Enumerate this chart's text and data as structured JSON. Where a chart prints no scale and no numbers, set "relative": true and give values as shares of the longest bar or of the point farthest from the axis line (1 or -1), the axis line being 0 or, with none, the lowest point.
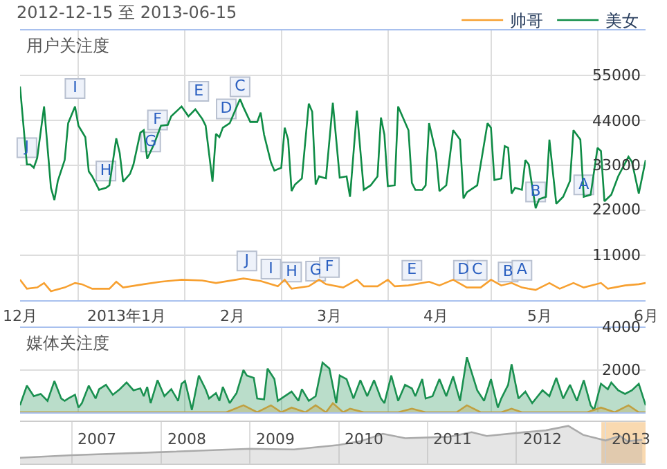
{
  "chart_data": [
    {
      "type": "line",
      "title": "2012-12-15 至 2013-06-15",
      "subtitle": "用户关注度",
      "legend": "top right",
      "grid": true,
      "xlim": [
        "2012-12-15",
        "2013-06-15"
      ],
      "xticks": [
        {
          "value": "2012-12-15",
          "label": "12月"
        },
        {
          "value": "2013-01-15",
          "label": "2013年1月"
        },
        {
          "value": "2013-02-15",
          "label": "2月"
        },
        {
          "value": "2013-03-15",
          "label": "3月"
        },
        {
          "value": "2013-04-15",
          "label": "4月"
        },
        {
          "value": "2013-05-15",
          "label": "5月"
        },
        {
          "value": "2013-06-15",
          "label": "6月"
        }
      ],
      "ylim": [
        0,
        66000
      ],
      "yticks": [
        11000,
        22000,
        33000,
        44000,
        55000
      ],
      "series": [
        {
          "name": "帅哥",
          "color": "#f7a030",
          "x": [
            "2012-12-15",
            "2012-12-17",
            "2012-12-20",
            "2012-12-22",
            "2012-12-24",
            "2012-12-28",
            "2012-12-31",
            "2013-01-02",
            "2013-01-05",
            "2013-01-10",
            "2013-01-12",
            "2013-01-14",
            "2013-01-20",
            "2013-01-25",
            "2013-01-31",
            "2013-02-06",
            "2013-02-10",
            "2013-02-18",
            "2013-02-23",
            "2013-02-28",
            "2013-03-02",
            "2013-03-04",
            "2013-03-09",
            "2013-03-12",
            "2013-03-14",
            "2013-03-19",
            "2013-03-23",
            "2013-03-25",
            "2013-03-29",
            "2013-04-01",
            "2013-04-03",
            "2013-04-07",
            "2013-04-13",
            "2013-04-16",
            "2013-04-20",
            "2013-04-24",
            "2013-04-28",
            "2013-05-01",
            "2013-05-04",
            "2013-05-07",
            "2013-05-10",
            "2013-05-14",
            "2013-05-18",
            "2013-05-21",
            "2013-05-25",
            "2013-05-28",
            "2013-06-02",
            "2013-06-04",
            "2013-06-09",
            "2013-06-13",
            "2013-06-15"
          ],
          "values": [
            5000,
            2800,
            3100,
            4200,
            2200,
            3100,
            4200,
            3900,
            2800,
            2800,
            4500,
            3100,
            3900,
            4500,
            5000,
            4800,
            4200,
            5300,
            4700,
            3400,
            5000,
            2800,
            3400,
            5000,
            3900,
            3100,
            5000,
            3400,
            3400,
            5000,
            3400,
            3600,
            4500,
            3600,
            5000,
            3100,
            3100,
            5000,
            3600,
            4200,
            3100,
            2500,
            4200,
            2800,
            4200,
            3100,
            4200,
            2800,
            3600,
            3900,
            4200
          ]
        },
        {
          "name": "美女",
          "color": "#0f8c46",
          "x": [
            "2012-12-15",
            "2012-12-17",
            "2012-12-18",
            "2012-12-19",
            "2012-12-20",
            "2012-12-22",
            "2012-12-24",
            "2012-12-25",
            "2012-12-26",
            "2012-12-28",
            "2012-12-29",
            "2012-12-31",
            "2013-01-01",
            "2013-01-03",
            "2013-01-04",
            "2013-01-05",
            "2013-01-07",
            "2013-01-09",
            "2013-01-10",
            "2013-01-12",
            "2013-01-13",
            "2013-01-14",
            "2013-01-16",
            "2013-01-17",
            "2013-01-19",
            "2013-01-20",
            "2013-01-21",
            "2013-01-23",
            "2013-01-25",
            "2013-01-27",
            "2013-01-28",
            "2013-01-31",
            "2013-02-02",
            "2013-02-04",
            "2013-02-06",
            "2013-02-07",
            "2013-02-09",
            "2013-02-10",
            "2013-02-11",
            "2013-02-12",
            "2013-02-14",
            "2013-02-17",
            "2013-02-18",
            "2013-02-20",
            "2013-02-22",
            "2013-02-23",
            "2013-02-24",
            "2013-02-26",
            "2013-02-27",
            "2013-03-01",
            "2013-03-02",
            "2013-03-03",
            "2013-03-04",
            "2013-03-05",
            "2013-03-07",
            "2013-03-09",
            "2013-03-10",
            "2013-03-11",
            "2013-03-12",
            "2013-03-14",
            "2013-03-16",
            "2013-03-18",
            "2013-03-20",
            "2013-03-21",
            "2013-03-23",
            "2013-03-25",
            "2013-03-27",
            "2013-03-29",
            "2013-03-30",
            "2013-03-31",
            "2013-04-01",
            "2013-04-03",
            "2013-04-04",
            "2013-04-07",
            "2013-04-08",
            "2013-04-09",
            "2013-04-11",
            "2013-04-12",
            "2013-04-13",
            "2013-04-15",
            "2013-04-16",
            "2013-04-18",
            "2013-04-20",
            "2013-04-22",
            "2013-04-23",
            "2013-04-24",
            "2013-04-27",
            "2013-04-30",
            "2013-05-01",
            "2013-05-02",
            "2013-05-04",
            "2013-05-05",
            "2013-05-06",
            "2013-05-07",
            "2013-05-08",
            "2013-05-10",
            "2013-05-11",
            "2013-05-12",
            "2013-05-14",
            "2013-05-15",
            "2013-05-17",
            "2013-05-18",
            "2013-05-20",
            "2013-05-22",
            "2013-05-24",
            "2013-05-25",
            "2013-05-27",
            "2013-05-28",
            "2013-05-30",
            "2013-06-01",
            "2013-06-02",
            "2013-06-03",
            "2013-06-05",
            "2013-06-07",
            "2013-06-10",
            "2013-06-11",
            "2013-06-13",
            "2013-06-15"
          ],
          "values": [
            52300,
            33200,
            33200,
            32400,
            34800,
            47400,
            27500,
            24500,
            29200,
            34300,
            43300,
            47400,
            42700,
            39900,
            31500,
            30300,
            27000,
            27500,
            28100,
            39600,
            36000,
            29000,
            30900,
            33200,
            41000,
            41600,
            34600,
            38200,
            42700,
            42900,
            45000,
            47400,
            45000,
            46700,
            44400,
            42700,
            29000,
            40700,
            39900,
            42200,
            43300,
            49200,
            47200,
            43600,
            43600,
            45900,
            40500,
            33700,
            31700,
            32400,
            42200,
            39300,
            26700,
            28300,
            29800,
            48100,
            46100,
            28300,
            30300,
            29800,
            48300,
            30000,
            30300,
            25300,
            46400,
            27000,
            28100,
            30300,
            44700,
            40500,
            27900,
            28100,
            47400,
            41600,
            28700,
            27000,
            27000,
            28100,
            43300,
            36000,
            26700,
            28100,
            41600,
            39300,
            24900,
            26400,
            28100,
            43300,
            42200,
            29400,
            29800,
            37700,
            37300,
            26100,
            27500,
            27000,
            34300,
            33200,
            22500,
            24700,
            25300,
            39300,
            23600,
            25300,
            29200,
            41600,
            39300,
            25300,
            25800,
            37300,
            36500,
            24200,
            25800,
            30300,
            35100,
            33900,
            26100,
            34300
          ]
        }
      ],
      "annotations": [
        {
          "text": "J",
          "x": "2012-12-17",
          "y": 37300
        },
        {
          "text": "I",
          "x": "2012-12-31",
          "y": 51800
        },
        {
          "text": "H",
          "x": "2013-01-09",
          "y": 31600
        },
        {
          "text": "G",
          "x": "2013-01-22",
          "y": 38700
        },
        {
          "text": "F",
          "x": "2013-01-24",
          "y": 44100
        },
        {
          "text": "E",
          "x": "2013-02-05",
          "y": 51100
        },
        {
          "text": "D",
          "x": "2013-02-13",
          "y": 46800
        },
        {
          "text": "C",
          "x": "2013-02-17",
          "y": 52200
        },
        {
          "text": "B",
          "x": "2013-05-14",
          "y": 26500
        },
        {
          "text": "A",
          "x": "2013-05-28",
          "y": 28200
        },
        {
          "text": "J",
          "x": "2013-02-19",
          "y": 9600
        },
        {
          "text": "I",
          "x": "2013-02-26",
          "y": 7600
        },
        {
          "text": "H",
          "x": "2013-03-04",
          "y": 6900
        },
        {
          "text": "G",
          "x": "2013-03-11",
          "y": 7100
        },
        {
          "text": "F",
          "x": "2013-03-15",
          "y": 8000
        },
        {
          "text": "E",
          "x": "2013-04-08",
          "y": 7300
        },
        {
          "text": "D",
          "x": "2013-04-23",
          "y": 7300
        },
        {
          "text": "C",
          "x": "2013-04-27",
          "y": 7300
        },
        {
          "text": "B",
          "x": "2013-05-06",
          "y": 6900
        },
        {
          "text": "A",
          "x": "2013-05-10",
          "y": 7300
        }
      ]
    },
    {
      "type": "area",
      "title": "媒体关注度",
      "grid": true,
      "tick_labels": "y",
      "xlim": [
        "2012-12-15",
        "2013-06-15"
      ],
      "ylim": [
        0,
        4000
      ],
      "yticks": [
        2000,
        4000
      ],
      "series": [
        {
          "color": "#1a9050",
          "x": [
            "2012-12-15",
            "2012-12-17",
            "2012-12-19",
            "2012-12-21",
            "2012-12-23",
            "2012-12-25",
            "2012-12-27",
            "2012-12-28",
            "2012-12-29",
            "2012-12-31",
            "2013-01-01",
            "2013-01-02",
            "2013-01-04",
            "2013-01-06",
            "2013-01-07",
            "2013-01-09",
            "2013-01-11",
            "2013-01-13",
            "2013-01-15",
            "2013-01-17",
            "2013-01-19",
            "2013-01-20",
            "2013-01-21",
            "2013-01-22",
            "2013-01-24",
            "2013-01-26",
            "2013-01-28",
            "2013-01-30",
            "2013-01-31",
            "2013-02-01",
            "2013-02-03",
            "2013-02-05",
            "2013-02-07",
            "2013-02-08",
            "2013-02-10",
            "2013-02-11",
            "2013-02-12",
            "2013-02-14",
            "2013-02-16",
            "2013-02-18",
            "2013-02-19",
            "2013-02-21",
            "2013-02-22",
            "2013-02-24",
            "2013-02-25",
            "2013-02-27",
            "2013-02-28",
            "2013-03-01",
            "2013-03-04",
            "2013-03-06",
            "2013-03-07",
            "2013-03-09",
            "2013-03-11",
            "2013-03-13",
            "2013-03-15",
            "2013-03-17",
            "2013-03-18",
            "2013-03-20",
            "2013-03-22",
            "2013-03-24",
            "2013-03-26",
            "2013-03-28",
            "2013-03-30",
            "2013-03-31",
            "2013-04-02",
            "2013-04-04",
            "2013-04-06",
            "2013-04-08",
            "2013-04-09",
            "2013-04-11",
            "2013-04-12",
            "2013-04-14",
            "2013-04-16",
            "2013-04-18",
            "2013-04-20",
            "2013-04-22",
            "2013-04-24",
            "2013-04-27",
            "2013-04-29",
            "2013-05-01",
            "2013-05-03",
            "2013-05-04",
            "2013-05-06",
            "2013-05-07",
            "2013-05-09",
            "2013-05-11",
            "2013-05-13",
            "2013-05-16",
            "2013-05-18",
            "2013-05-20",
            "2013-05-22",
            "2013-05-24",
            "2013-05-26",
            "2013-05-28",
            "2013-05-30",
            "2013-05-31",
            "2013-06-02",
            "2013-06-04",
            "2013-06-05",
            "2013-06-07",
            "2013-06-09",
            "2013-06-11",
            "2013-06-13",
            "2013-06-15"
          ],
          "values": [
            330,
            1260,
            760,
            870,
            540,
            1480,
            650,
            540,
            650,
            830,
            220,
            430,
            1260,
            650,
            1090,
            1300,
            830,
            1090,
            1410,
            1040,
            1130,
            760,
            1200,
            430,
            1520,
            760,
            1090,
            540,
            1350,
            1480,
            110,
            1740,
            1090,
            650,
            910,
            540,
            1200,
            430,
            910,
            2000,
            1740,
            1630,
            650,
            610,
            2070,
            1570,
            540,
            650,
            980,
            540,
            1090,
            540,
            760,
            2350,
            2070,
            430,
            1740,
            1570,
            650,
            1520,
            760,
            1520,
            650,
            430,
            1740,
            540,
            1300,
            1130,
            760,
            1570,
            650,
            760,
            1570,
            760,
            1700,
            540,
            2610,
            1040,
            540,
            1570,
            220,
            650,
            1300,
            2280,
            650,
            980,
            430,
            1040,
            760,
            1630,
            650,
            1300,
            540,
            1520,
            330,
            110,
            1350,
            1090,
            1410,
            1040,
            870,
            1040,
            1350,
            330
          ]
        },
        {
          "color": "#c0a040",
          "x": [
            "2012-12-15",
            "2013-02-13",
            "2013-02-18",
            "2013-02-22",
            "2013-02-26",
            "2013-03-01",
            "2013-03-04",
            "2013-03-08",
            "2013-03-11",
            "2013-03-14",
            "2013-03-16",
            "2013-03-19",
            "2013-03-21",
            "2013-03-25",
            "2013-04-04",
            "2013-04-08",
            "2013-04-12",
            "2013-04-21",
            "2013-04-24",
            "2013-04-28",
            "2013-05-04",
            "2013-05-07",
            "2013-05-10",
            "2013-05-29",
            "2013-06-02",
            "2013-06-06",
            "2013-06-10",
            "2013-06-13",
            "2013-06-15"
          ],
          "values": [
            0,
            0,
            330,
            0,
            330,
            0,
            220,
            0,
            330,
            0,
            430,
            0,
            170,
            0,
            0,
            170,
            0,
            0,
            330,
            0,
            0,
            170,
            0,
            0,
            220,
            0,
            330,
            0,
            0
          ]
        }
      ]
    },
    {
      "type": "area",
      "relative": true,
      "tick_labels": "x",
      "grid": "x",
      "xlim": [
        "2006-06-01",
        "2013-06-15"
      ],
      "xticks": [
        {
          "value": "2007-04-15",
          "label": "2007"
        },
        {
          "value": "2008-04-15",
          "label": "2008"
        },
        {
          "value": "2009-04-15",
          "label": "2009"
        },
        {
          "value": "2010-04-15",
          "label": "2010"
        },
        {
          "value": "2011-04-15",
          "label": "2011"
        },
        {
          "value": "2012-04-15",
          "label": "2012"
        },
        {
          "value": "2013-04-15",
          "label": "2013"
        }
      ],
      "bands": [
        {
          "axis": "x",
          "from": "2012-12-15",
          "to": "2013-06-15",
          "color": "#f9d9b0"
        }
      ],
      "series": [
        {
          "color": "#aaaaaa",
          "x": [
            "2006-06-01",
            "2007-01-01",
            "2008-01-01",
            "2009-01-01",
            "2009-07-01",
            "2010-01-01",
            "2010-04-01",
            "2010-07-01",
            "2010-10-01",
            "2011-04-01",
            "2011-07-01",
            "2011-09-01",
            "2012-02-01",
            "2012-05-01",
            "2012-08-01",
            "2012-10-01",
            "2013-01-01",
            "2013-03-01",
            "2013-04-01",
            "2013-06-01"
          ],
          "values": [
            0.15,
            0.22,
            0.3,
            0.39,
            0.37,
            0.49,
            0.59,
            0.79,
            0.67,
            0.71,
            0.83,
            0.73,
            0.83,
            0.88,
            1,
            0.76,
            0.61,
            0.73,
            0.59,
            0.63
          ]
        }
      ]
    }
  ]
}
